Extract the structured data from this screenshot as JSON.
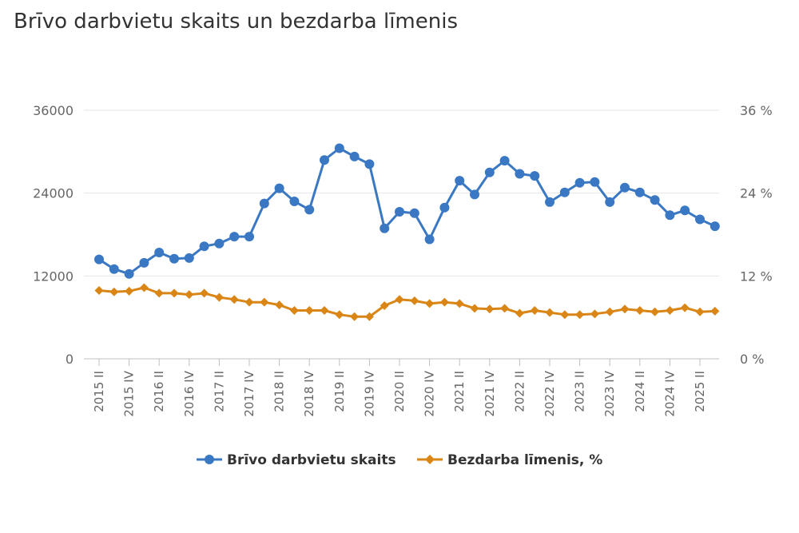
{
  "chart_data": {
    "type": "line",
    "title": "Brīvo darbvietu skaits un bezdarba līmenis",
    "x": [
      "2015 II",
      "2015 III",
      "2015 IV",
      "2016 I",
      "2016 II",
      "2016 III",
      "2016 IV",
      "2017 I",
      "2017 II",
      "2017 III",
      "2017 IV",
      "2018 I",
      "2018 II",
      "2018 III",
      "2018 IV",
      "2019 I",
      "2019 II",
      "2019 III",
      "2019 IV",
      "2020 I",
      "2020 II",
      "2020 III",
      "2020 IV",
      "2021 I",
      "2021 II",
      "2021 III",
      "2021 IV",
      "2022 I",
      "2022 II",
      "2022 III",
      "2022 IV",
      "2023 I",
      "2023 II",
      "2023 III",
      "2023 IV",
      "2024 I",
      "2024 II",
      "2024 III",
      "2024 IV",
      "2025 I",
      "2025 II",
      "2025 III"
    ],
    "x_tick_labels": [
      "2015 II",
      "2015 IV",
      "2016 II",
      "2016 IV",
      "2017 II",
      "2017 IV",
      "2018 II",
      "2018 IV",
      "2019 II",
      "2019 IV",
      "2020 II",
      "2020 IV",
      "2021 II",
      "2021 IV",
      "2022 II",
      "2022 IV",
      "2023 II",
      "2023 IV",
      "2024 II",
      "2024 IV",
      "2025 II"
    ],
    "y_left": {
      "ticks": [
        "0",
        "12000",
        "24000",
        "36000"
      ],
      "range": [
        0,
        36000
      ]
    },
    "y_right": {
      "ticks": [
        "0 %",
        "12 %",
        "24 %",
        "36 %"
      ],
      "range": [
        0,
        36
      ]
    },
    "grid": true,
    "legend_position": "bottom",
    "series": [
      {
        "name": "Brīvo darbvietu skaits",
        "axis": "left",
        "color": "#3a78c3",
        "marker": "circle",
        "values": [
          14400,
          13000,
          12300,
          13900,
          15400,
          14500,
          14600,
          16300,
          16700,
          17700,
          17700,
          22500,
          24700,
          22800,
          21600,
          28800,
          30500,
          29300,
          28200,
          18900,
          21300,
          21100,
          17300,
          21900,
          25800,
          23800,
          27000,
          28700,
          26800,
          26500,
          22700,
          24100,
          25500,
          25600,
          22700,
          24800,
          24100,
          23000,
          20800,
          21500,
          20200,
          19200
        ]
      },
      {
        "name": "Bezdarba līmenis, %",
        "axis": "right",
        "color": "#d98616",
        "marker": "diamond",
        "values": [
          9.9,
          9.7,
          9.8,
          10.3,
          9.5,
          9.5,
          9.3,
          9.5,
          8.9,
          8.6,
          8.2,
          8.2,
          7.8,
          7.0,
          7.0,
          7.0,
          6.4,
          6.1,
          6.1,
          7.7,
          8.6,
          8.4,
          8.0,
          8.2,
          8.0,
          7.3,
          7.2,
          7.3,
          6.6,
          7.0,
          6.7,
          6.4,
          6.4,
          6.5,
          6.8,
          7.2,
          7.0,
          6.8,
          7.0,
          7.4,
          6.8,
          6.9
        ]
      }
    ]
  }
}
